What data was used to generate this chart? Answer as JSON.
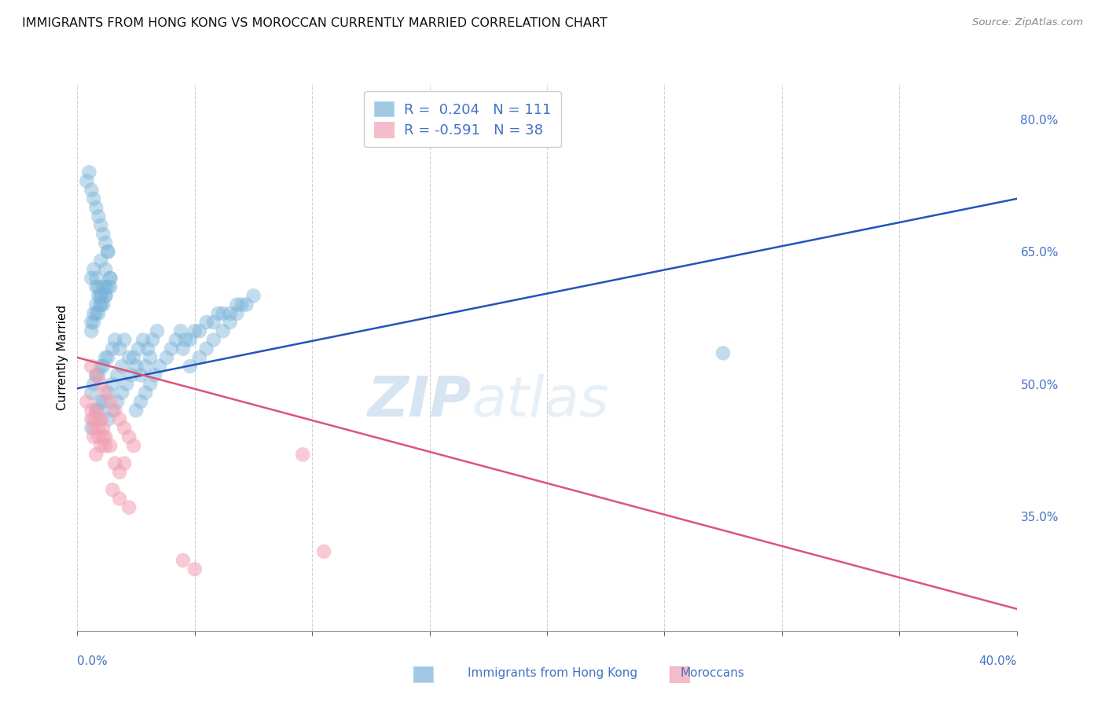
{
  "title": "IMMIGRANTS FROM HONG KONG VS MOROCCAN CURRENTLY MARRIED CORRELATION CHART",
  "source": "Source: ZipAtlas.com",
  "ylabel": "Currently Married",
  "xlim": [
    0.0,
    0.4
  ],
  "ylim": [
    0.22,
    0.84
  ],
  "y_ticks_right": [
    0.35,
    0.5,
    0.65,
    0.8
  ],
  "y_tick_labels_right": [
    "35.0%",
    "50.0%",
    "65.0%",
    "80.0%"
  ],
  "legend_R_blue": "0.204",
  "legend_N_blue": "111",
  "legend_R_pink": "-0.591",
  "legend_N_pink": "38",
  "legend_labels": [
    "Immigrants from Hong Kong",
    "Moroccans"
  ],
  "watermark_zip": "ZIP",
  "watermark_atlas": "atlas",
  "blue_scatter_x": [
    0.008,
    0.01,
    0.012,
    0.01,
    0.013,
    0.009,
    0.007,
    0.006,
    0.008,
    0.01,
    0.012,
    0.014,
    0.011,
    0.009,
    0.007,
    0.006,
    0.008,
    0.01,
    0.012,
    0.014,
    0.013,
    0.011,
    0.009,
    0.007,
    0.006,
    0.008,
    0.01,
    0.012,
    0.014,
    0.016,
    0.015,
    0.013,
    0.011,
    0.009,
    0.007,
    0.006,
    0.008,
    0.01,
    0.012,
    0.018,
    0.02,
    0.022,
    0.019,
    0.017,
    0.015,
    0.013,
    0.011,
    0.009,
    0.007,
    0.006,
    0.008,
    0.01,
    0.024,
    0.026,
    0.028,
    0.025,
    0.023,
    0.021,
    0.019,
    0.017,
    0.015,
    0.013,
    0.03,
    0.032,
    0.034,
    0.031,
    0.029,
    0.027,
    0.035,
    0.033,
    0.031,
    0.029,
    0.027,
    0.025,
    0.04,
    0.042,
    0.038,
    0.044,
    0.046,
    0.05,
    0.055,
    0.06,
    0.045,
    0.048,
    0.052,
    0.058,
    0.062,
    0.068,
    0.065,
    0.07,
    0.075,
    0.072,
    0.068,
    0.065,
    0.062,
    0.058,
    0.055,
    0.052,
    0.048,
    0.004,
    0.005,
    0.006,
    0.007,
    0.008,
    0.009,
    0.01,
    0.011,
    0.012,
    0.013,
    0.275
  ],
  "blue_scatter_y": [
    0.62,
    0.64,
    0.63,
    0.6,
    0.65,
    0.61,
    0.63,
    0.62,
    0.61,
    0.59,
    0.6,
    0.62,
    0.61,
    0.6,
    0.58,
    0.57,
    0.59,
    0.6,
    0.61,
    0.62,
    0.61,
    0.59,
    0.58,
    0.57,
    0.56,
    0.58,
    0.59,
    0.6,
    0.61,
    0.55,
    0.54,
    0.53,
    0.52,
    0.51,
    0.5,
    0.49,
    0.51,
    0.52,
    0.53,
    0.54,
    0.55,
    0.53,
    0.52,
    0.51,
    0.5,
    0.49,
    0.48,
    0.47,
    0.46,
    0.45,
    0.47,
    0.48,
    0.53,
    0.54,
    0.55,
    0.52,
    0.51,
    0.5,
    0.49,
    0.48,
    0.47,
    0.46,
    0.54,
    0.55,
    0.56,
    0.53,
    0.52,
    0.51,
    0.52,
    0.51,
    0.5,
    0.49,
    0.48,
    0.47,
    0.54,
    0.55,
    0.53,
    0.56,
    0.55,
    0.56,
    0.57,
    0.58,
    0.54,
    0.55,
    0.56,
    0.57,
    0.58,
    0.59,
    0.58,
    0.59,
    0.6,
    0.59,
    0.58,
    0.57,
    0.56,
    0.55,
    0.54,
    0.53,
    0.52,
    0.73,
    0.74,
    0.72,
    0.71,
    0.7,
    0.69,
    0.68,
    0.67,
    0.66,
    0.65,
    0.535
  ],
  "pink_scatter_x": [
    0.004,
    0.006,
    0.008,
    0.007,
    0.009,
    0.01,
    0.011,
    0.008,
    0.006,
    0.007,
    0.009,
    0.01,
    0.011,
    0.012,
    0.008,
    0.01,
    0.012,
    0.014,
    0.016,
    0.018,
    0.02,
    0.006,
    0.008,
    0.01,
    0.012,
    0.014,
    0.016,
    0.018,
    0.02,
    0.022,
    0.024,
    0.015,
    0.018,
    0.022,
    0.096,
    0.105,
    0.045,
    0.05
  ],
  "pink_scatter_y": [
    0.48,
    0.47,
    0.46,
    0.45,
    0.44,
    0.46,
    0.45,
    0.47,
    0.46,
    0.44,
    0.45,
    0.46,
    0.44,
    0.43,
    0.42,
    0.43,
    0.44,
    0.43,
    0.41,
    0.4,
    0.41,
    0.52,
    0.51,
    0.5,
    0.49,
    0.48,
    0.47,
    0.46,
    0.45,
    0.44,
    0.43,
    0.38,
    0.37,
    0.36,
    0.42,
    0.31,
    0.3,
    0.29
  ],
  "blue_line": {
    "x0": 0.0,
    "y0": 0.495,
    "x1": 0.4,
    "y1": 0.71
  },
  "pink_line": {
    "x0": 0.0,
    "y0": 0.53,
    "x1": 0.4,
    "y1": 0.245
  },
  "dot_size": 180,
  "blue_color": "#7ab3d9",
  "pink_color": "#f2a0b4",
  "blue_line_color": "#2255bb",
  "pink_line_color": "#dd5577",
  "background_color": "#ffffff",
  "grid_color": "#cccccc",
  "axis_label_color": "#4472c4",
  "title_fontsize": 11.5
}
